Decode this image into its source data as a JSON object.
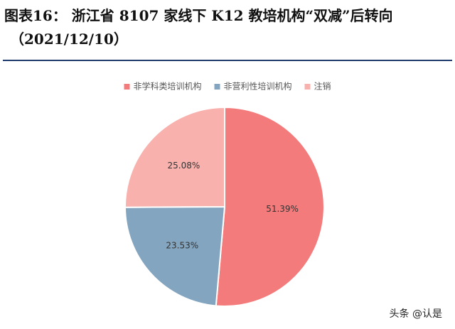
{
  "header": {
    "title_line1": "图表16：  浙江省 8107 家线下 K12 教培机构“双减”后转向",
    "title_line2": "（2021/12/10）"
  },
  "chart_data": {
    "type": "pie",
    "title": "",
    "legend_placement": "top",
    "categories": [
      "非学科类培训机构",
      "非营利性培训机构",
      "注销"
    ],
    "values": [
      51.39,
      23.53,
      25.08
    ],
    "labels": [
      "51.39%",
      "23.53%",
      "25.08%"
    ],
    "colors": [
      "#f47b7b",
      "#84a5bf",
      "#f8b1ad"
    ],
    "start_angle_deg": 0,
    "direction": "clockwise"
  },
  "watermark": {
    "text": "头条 @认是"
  }
}
